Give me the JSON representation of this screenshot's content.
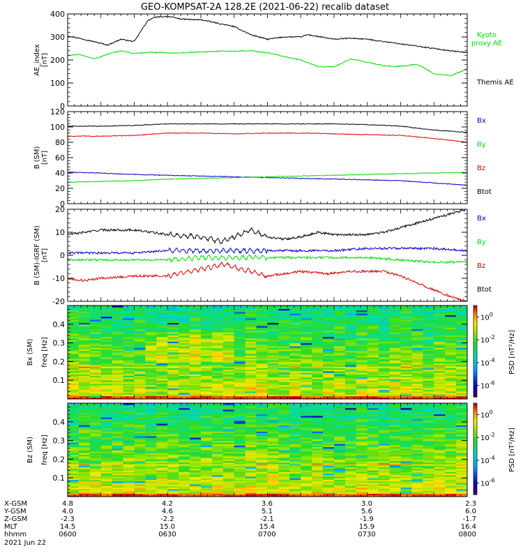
{
  "title": "GEO-KOMPSAT-2A 128.2E (2021-06-22) recalib dataset",
  "colors": {
    "black": "#000000",
    "red": "#dd0000",
    "green": "#00dd00",
    "blue": "#0000cc"
  },
  "chart_data": [
    {
      "type": "line",
      "ylabel": [
        "AE_index",
        "[nT]"
      ],
      "ylim": [
        0,
        400
      ],
      "yticks": [
        0,
        100,
        200,
        300,
        400
      ],
      "xlim": [
        0,
        120
      ],
      "legend": [
        {
          "text": "Kyoto",
          "color": "#00dd00"
        },
        {
          "text": "proxy AE",
          "color": "#00dd00"
        },
        {
          "text": "Themis AE",
          "color": "#000000"
        }
      ],
      "series": [
        {
          "name": "Themis AE",
          "color": "#000000",
          "x": [
            0,
            5,
            12,
            16,
            20,
            24,
            26,
            30,
            34,
            38,
            40,
            45,
            50,
            55,
            60,
            65,
            70,
            72,
            76,
            80,
            85,
            90,
            95,
            100,
            105,
            110,
            115,
            120
          ],
          "y": [
            305,
            290,
            265,
            290,
            280,
            370,
            385,
            390,
            378,
            375,
            375,
            360,
            345,
            310,
            290,
            300,
            300,
            310,
            300,
            290,
            295,
            290,
            280,
            270,
            260,
            250,
            240,
            232
          ]
        },
        {
          "name": "Kyoto proxy AE",
          "color": "#00dd00",
          "x": [
            0,
            4,
            8,
            12,
            16,
            20,
            24,
            28,
            32,
            36,
            40,
            45,
            50,
            55,
            60,
            65,
            70,
            75,
            80,
            85,
            90,
            95,
            100,
            105,
            110,
            115,
            120
          ],
          "y": [
            220,
            223,
            205,
            225,
            240,
            228,
            233,
            232,
            230,
            232,
            235,
            238,
            238,
            240,
            232,
            215,
            200,
            172,
            170,
            205,
            190,
            175,
            172,
            182,
            140,
            132,
            160
          ]
        }
      ]
    },
    {
      "type": "line",
      "ylabel": [
        "B (SM)",
        "[nT]"
      ],
      "ylim": [
        0,
        120
      ],
      "yticks": [
        0,
        20,
        40,
        60,
        80,
        100,
        120
      ],
      "xlim": [
        0,
        120
      ],
      "legend": [
        {
          "text": "Bx",
          "color": "#0000cc"
        },
        {
          "text": "By",
          "color": "#00dd00"
        },
        {
          "text": "Bz",
          "color": "#dd0000"
        },
        {
          "text": "Btot",
          "color": "#000000"
        }
      ],
      "series": [
        {
          "name": "Btot",
          "color": "#000000",
          "x": [
            0,
            10,
            20,
            30,
            40,
            50,
            60,
            70,
            80,
            90,
            100,
            110,
            120
          ],
          "y": [
            101,
            101,
            102,
            104,
            104,
            104,
            104,
            104,
            104,
            103,
            101,
            96,
            93
          ]
        },
        {
          "name": "Bz",
          "color": "#dd0000",
          "x": [
            0,
            10,
            20,
            30,
            40,
            50,
            60,
            70,
            80,
            90,
            100,
            110,
            120
          ],
          "y": [
            88,
            88,
            89,
            92,
            92,
            91,
            92,
            92,
            91,
            90,
            89,
            85,
            80
          ]
        },
        {
          "name": "Bx",
          "color": "#0000cc",
          "x": [
            0,
            10,
            20,
            30,
            40,
            50,
            60,
            70,
            80,
            90,
            100,
            110,
            120
          ],
          "y": [
            41,
            40,
            38,
            37,
            36,
            35,
            34,
            33,
            32,
            31,
            30,
            27,
            24
          ]
        },
        {
          "name": "By",
          "color": "#00dd00",
          "x": [
            0,
            10,
            20,
            30,
            40,
            50,
            60,
            70,
            80,
            90,
            100,
            110,
            120
          ],
          "y": [
            28,
            29,
            30,
            32,
            33,
            34,
            35,
            36,
            37,
            38,
            39,
            40,
            41
          ]
        }
      ]
    },
    {
      "type": "line",
      "ylabel": [
        "B (SM)-IGRF (SM)",
        "[nT]"
      ],
      "ylim": [
        -20,
        20
      ],
      "yticks": [
        -20,
        -10,
        0,
        10,
        20
      ],
      "xlim": [
        0,
        120
      ],
      "legend": [
        {
          "text": "Bx",
          "color": "#0000cc"
        },
        {
          "text": "By",
          "color": "#00dd00"
        },
        {
          "text": "Bz",
          "color": "#dd0000"
        },
        {
          "text": "Btot",
          "color": "#000000"
        }
      ],
      "series": [
        {
          "name": "Btot",
          "color": "#000000",
          "x": [
            0,
            10,
            20,
            30,
            40,
            46,
            50,
            55,
            60,
            65,
            70,
            75,
            80,
            90,
            95,
            100,
            105,
            110,
            115,
            120
          ],
          "y": [
            9,
            11,
            11,
            9,
            8,
            6,
            8,
            11,
            8,
            7,
            8,
            10,
            9,
            9,
            10,
            12,
            14,
            16,
            18,
            20
          ]
        },
        {
          "name": "Bx",
          "color": "#0000cc",
          "x": [
            0,
            10,
            20,
            30,
            40,
            50,
            60,
            70,
            80,
            90,
            100,
            110,
            120
          ],
          "y": [
            1,
            1,
            1,
            2,
            2,
            2,
            2,
            2,
            2,
            3,
            3,
            3,
            2
          ]
        },
        {
          "name": "By",
          "color": "#00dd00",
          "x": [
            0,
            10,
            20,
            30,
            40,
            50,
            60,
            70,
            80,
            90,
            100,
            110,
            120
          ],
          "y": [
            -2,
            -2,
            -2,
            -2,
            -1,
            -1,
            -1,
            -1,
            -1,
            -1,
            -2,
            -3,
            -3
          ]
        },
        {
          "name": "Bz",
          "color": "#dd0000",
          "x": [
            0,
            5,
            10,
            20,
            30,
            40,
            47,
            55,
            60,
            70,
            78,
            85,
            95,
            100,
            105,
            110,
            115,
            120
          ],
          "y": [
            -10,
            -11,
            -10,
            -9,
            -9,
            -6,
            -4,
            -7,
            -9,
            -7,
            -8,
            -7,
            -7,
            -9,
            -12,
            -15,
            -18,
            -20
          ]
        }
      ]
    },
    {
      "type": "heatmap",
      "ylabel": [
        "Bx (SM)",
        "freq [Hz]"
      ],
      "ylim": [
        0,
        0.5
      ],
      "yticks": [
        0.1,
        0.2,
        0.3,
        0.4
      ],
      "colorbar": {
        "label": "PSD [nT^2/Hz]",
        "ticks": [
          "10^0",
          "10^-2",
          "10^-4",
          "10^-6"
        ],
        "range_log10": [
          -7,
          1
        ]
      },
      "intensity_note": "log10 PSD falls with frequency; enhanced band near 0.17 Hz; enhanced power 0.2-0.35 Hz around 06:20-06:40 UT"
    },
    {
      "type": "heatmap",
      "ylabel": [
        "Bz (SM)",
        "freq [Hz]"
      ],
      "ylim": [
        0,
        0.5
      ],
      "yticks": [
        0.1,
        0.2,
        0.3,
        0.4
      ],
      "colorbar": {
        "label": "PSD [nT^2/Hz]",
        "ticks": [
          "10^0",
          "10^-2",
          "10^-4",
          "10^-6"
        ],
        "range_log10": [
          -7,
          1
        ]
      },
      "intensity_note": "log10 PSD falls with frequency; enhanced band near 0.17 Hz"
    }
  ],
  "axis_table": {
    "rows": [
      {
        "label": "X-GSM",
        "values": [
          "4.8",
          "4.2",
          "3.6",
          "3.0",
          "2.3"
        ]
      },
      {
        "label": "Y-GSM",
        "values": [
          "4.0",
          "4.6",
          "5.1",
          "5.6",
          "6.0"
        ]
      },
      {
        "label": "Z-GSM",
        "values": [
          "-2.3",
          "-2.2",
          "-2.1",
          "-1.9",
          "-1.7"
        ]
      },
      {
        "label": "MLT",
        "values": [
          "14.5",
          "15.0",
          "15.4",
          "15.9",
          "16.4"
        ]
      },
      {
        "label": "hhmm",
        "values": [
          "0600",
          "0630",
          "0700",
          "0730",
          "0800"
        ]
      }
    ],
    "date": "2021 Jun 22"
  }
}
